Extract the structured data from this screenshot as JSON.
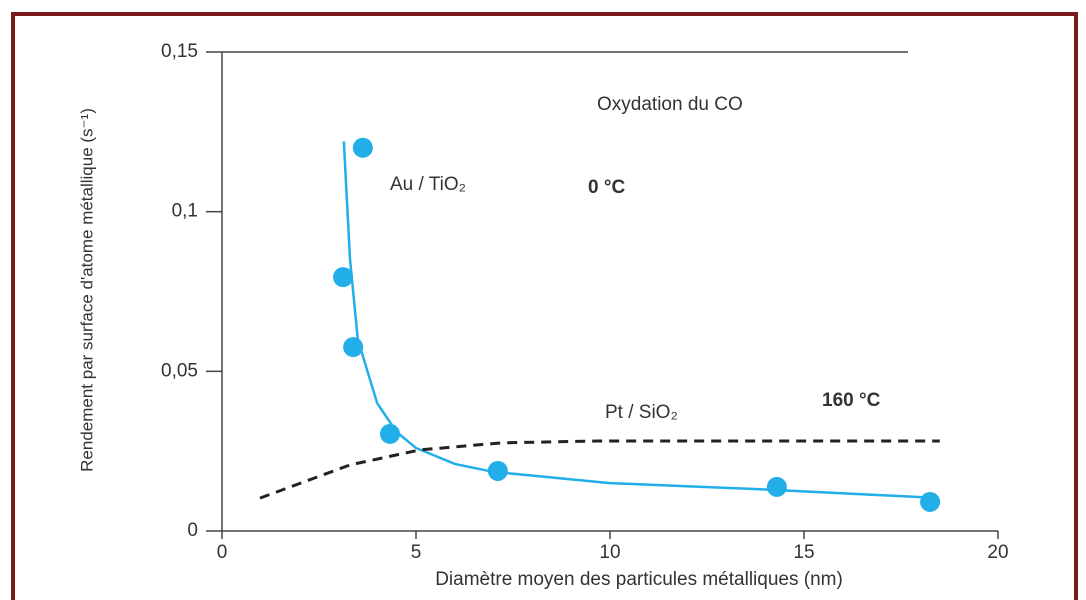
{
  "chart_data": {
    "type": "scatter",
    "x_label": "Diamètre moyen des particules métalliques (nm)",
    "y_label": "Rendement par surface d'atome métallique (s⁻¹)",
    "xlim": [
      0,
      20
    ],
    "ylim": [
      0,
      0.15
    ],
    "xticks": [
      0,
      5,
      10,
      15,
      20
    ],
    "yticks": [
      0,
      {
        "value": 0.05,
        "label": "0,05"
      },
      {
        "value": 0.1,
        "label": "0,1"
      },
      {
        "value": 0.15,
        "label": "0,15"
      }
    ],
    "annotations": [
      "Oxydation du CO",
      "0 °C",
      "160 °C"
    ],
    "series": [
      {
        "name": "Au / TiO₂",
        "kind": "scatter",
        "color": "#22aee8",
        "x": [
          3.63,
          3.12,
          3.38,
          4.33,
          7.11,
          14.3,
          18.25
        ],
        "values": [
          0.12,
          0.0795,
          0.0576,
          0.0304,
          0.0188,
          0.0138,
          0.0091
        ]
      },
      {
        "kind": "line",
        "color": "#22aee8",
        "dash": false,
        "x": [
          3.14,
          3.3,
          3.5,
          4.0,
          4.5,
          5,
          6,
          7,
          10,
          14,
          18.2
        ],
        "values": [
          0.122,
          0.085,
          0.06,
          0.04,
          0.031,
          0.026,
          0.021,
          0.0185,
          0.015,
          0.013,
          0.0105
        ]
      },
      {
        "name": "Pt / SiO₂",
        "kind": "line",
        "color": "#222",
        "dash": true,
        "x": [
          0.98,
          3.3,
          5.1,
          7.2,
          9.7,
          18.5
        ],
        "values": [
          0.0103,
          0.0207,
          0.0254,
          0.0276,
          0.0282,
          0.0282
        ]
      }
    ]
  }
}
